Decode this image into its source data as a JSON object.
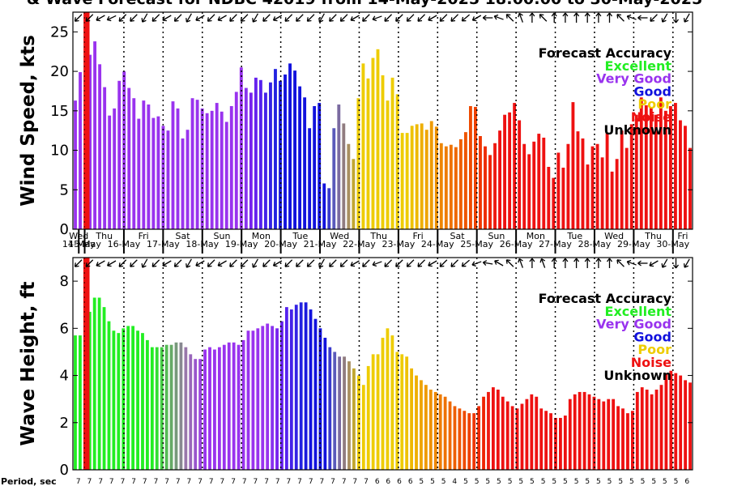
{
  "title": "& Wave Forecast for NDBC 42019 from 14-May-2025 18:00:00 to 30-May-2025",
  "legend": {
    "title": "Forecast Accuracy",
    "items": [
      {
        "label": "Excellent",
        "color": "#22ee22"
      },
      {
        "label": "Very Good",
        "color": "#9933ee"
      },
      {
        "label": "Good",
        "color": "#1111dd"
      },
      {
        "label": "Poor",
        "color": "#eecc00"
      },
      {
        "label": "Noise",
        "color": "#ee1111"
      },
      {
        "label": "Unknown",
        "color": "#000000"
      }
    ]
  },
  "period_label": "Period, sec",
  "chart_data": [
    {
      "type": "bar",
      "ylabel": "Wind Speed, kts",
      "ylim": [
        0,
        27.5
      ],
      "yticks": [
        0,
        5,
        10,
        15,
        20,
        25
      ],
      "xlim": [
        0,
        79
      ],
      "day_labels": [
        "Wed",
        "Thu",
        "Fri",
        "Sat",
        "Sun",
        "Mon",
        "Tue",
        "Wed",
        "Thu",
        "Fri",
        "Sat",
        "Sun",
        "Mon",
        "Tue",
        "Wed",
        "Thu",
        "Fri"
      ],
      "date_labels": [
        "14-May",
        "15-May",
        "16-May",
        "17-May",
        "18-May",
        "19-May",
        "20-May",
        "21-May",
        "22-May",
        "23-May",
        "24-May",
        "25-May",
        "26-May",
        "27-May",
        "28-May",
        "29-May",
        "30-May"
      ],
      "day_boundaries": [
        1.5,
        6.5,
        11.5,
        16.5,
        21.5,
        26.5,
        31.5,
        36.5,
        41.5,
        46.5,
        51.5,
        56.5,
        61.5,
        66.5,
        71.5,
        76.5
      ],
      "current_marker": 1.5,
      "grid": "vertical dotted lines",
      "legend_position": "top-right",
      "values": [
        16.3,
        19.9,
        27.5,
        22.1,
        23.8,
        20.9,
        18.0,
        14.4,
        15.3,
        18.8,
        20.0,
        17.9,
        16.6,
        14.0,
        16.3,
        15.8,
        14.1,
        14.3,
        13.1,
        12.5,
        16.2,
        15.3,
        11.5,
        12.6,
        16.6,
        16.4,
        15.3,
        14.7,
        15.0,
        16.0,
        14.9,
        13.6,
        15.6,
        17.4,
        20.5,
        17.9,
        17.3,
        19.2,
        18.9,
        17.3,
        18.6,
        20.3,
        18.8,
        19.6,
        21.0,
        20.1,
        18.1,
        16.7,
        12.8,
        15.6,
        16.0,
        5.8,
        5.2,
        12.8,
        15.8,
        13.4,
        10.8,
        8.9,
        16.6,
        21.0,
        19.1,
        21.7,
        22.8,
        19.5,
        16.3,
        19.2,
        17.1,
        12.2,
        12.2,
        13.1,
        13.3,
        13.4,
        12.6,
        13.7,
        13.0,
        10.9,
        10.5,
        10.7,
        10.4,
        11.4,
        12.3,
        15.6,
        15.5,
        11.8,
        10.5,
        9.4,
        10.9,
        12.5,
        14.5,
        14.8,
        16.0,
        13.8,
        10.8,
        9.5,
        11.1,
        12.1,
        11.6,
        7.9,
        6.5,
        9.7,
        7.8,
        10.8,
        16.1,
        12.4,
        11.5,
        8.2,
        10.5,
        10.8,
        9.1,
        12.2,
        7.3,
        8.9,
        12.5,
        10.3,
        13.3,
        14.5,
        16.7,
        15.7,
        15.4,
        14.5,
        16.7,
        15.0,
        15.6,
        16.0,
        13.8,
        13.1,
        10.3
      ],
      "colors": [
        "#9933ee",
        "#9933ee",
        "#ee1111",
        "#9933ee",
        "#9933ee",
        "#9933ee",
        "#9933ee",
        "#9933ee",
        "#9933ee",
        "#9933ee",
        "#9933ee",
        "#9933ee",
        "#9933ee",
        "#9933ee",
        "#9933ee",
        "#9933ee",
        "#9933ee",
        "#9933ee",
        "#9933ee",
        "#9933ee",
        "#9933ee",
        "#9933ee",
        "#9933ee",
        "#9933ee",
        "#9933ee",
        "#9933ee",
        "#9933ee",
        "#9933ee",
        "#9933ee",
        "#9933ee",
        "#9933ee",
        "#9933ee",
        "#9933ee",
        "#9933ee",
        "#9933ee",
        "#8833ee",
        "#7722ee",
        "#6622ee",
        "#5522ee",
        "#4422e8",
        "#3322e4",
        "#2222e0",
        "#1a1add",
        "#1111dd",
        "#1111dd",
        "#1111dd",
        "#1111dd",
        "#1111dd",
        "#1111dd",
        "#1111dd",
        "#1111dd",
        "#1111dd",
        "#3a3acc",
        "#5a5abb",
        "#7a6aa0",
        "#907c80",
        "#a88f60",
        "#c0a630",
        "#eecc00",
        "#eecc00",
        "#eecc00",
        "#eecc00",
        "#eecc00",
        "#eecc00",
        "#eecc00",
        "#eecc00",
        "#eecc00",
        "#eecc00",
        "#eecc00",
        "#eec200",
        "#eeb800",
        "#eeae00",
        "#eea400",
        "#ee9a00",
        "#ee9000",
        "#ee8600",
        "#ee7c00",
        "#ee7200",
        "#ee6800",
        "#ee5e00",
        "#ee5400",
        "#ee4a00",
        "#ee4000",
        "#ee3600",
        "#ee2c00",
        "#ee2200",
        "#ee1a11",
        "#ee1111",
        "#ee1111",
        "#ee1111",
        "#ee1111",
        "#ee1111",
        "#ee1111",
        "#ee1111",
        "#ee1111",
        "#ee1111",
        "#ee1111",
        "#ee1111",
        "#ee1111",
        "#ee1111",
        "#ee1111",
        "#ee1111",
        "#ee1111",
        "#ee1111",
        "#ee1111",
        "#ee1111",
        "#ee1111",
        "#ee1111",
        "#ee1111",
        "#ee1111",
        "#ee1111",
        "#ee1111",
        "#ee1111",
        "#ee1111",
        "#ee1111",
        "#ee1111",
        "#ee1111",
        "#ee1111",
        "#ee1111",
        "#ee1111",
        "#ee1111",
        "#ee1111",
        "#ee1111",
        "#ee1111",
        "#ee1111"
      ],
      "direction_arrows_deg": [
        135,
        135,
        150,
        155,
        135,
        135,
        120,
        135,
        150,
        135,
        120,
        150,
        135,
        150,
        135,
        135,
        120,
        135,
        150,
        135,
        135,
        135,
        120,
        135,
        135,
        150,
        135,
        160,
        135,
        135,
        135,
        135,
        150,
        135,
        135,
        140,
        150,
        180,
        200,
        225,
        250,
        270,
        225,
        270,
        270,
        270,
        270,
        270,
        270,
        225,
        200,
        180,
        135,
        120,
        90,
        120
      ]
    },
    {
      "type": "bar",
      "ylabel": "Wave Height, ft",
      "ylim": [
        0,
        9
      ],
      "yticks": [
        0,
        2,
        4,
        6,
        8
      ],
      "xlim": [
        0,
        79
      ],
      "day_labels": [],
      "date_labels": [],
      "day_boundaries": [
        1.5,
        6.5,
        11.5,
        16.5,
        21.5,
        26.5,
        31.5,
        36.5,
        41.5,
        46.5,
        51.5,
        56.5,
        61.5,
        66.5,
        71.5,
        76.5
      ],
      "current_marker": 1.5,
      "grid": "vertical dotted lines",
      "legend_position": "top-right",
      "values": [
        5.7,
        5.7,
        9.0,
        6.7,
        7.3,
        7.3,
        6.9,
        6.3,
        5.9,
        5.8,
        6.0,
        6.1,
        6.1,
        5.9,
        5.8,
        5.5,
        5.2,
        5.2,
        5.2,
        5.3,
        5.3,
        5.4,
        5.4,
        5.2,
        4.9,
        4.7,
        4.7,
        5.1,
        5.2,
        5.1,
        5.2,
        5.3,
        5.4,
        5.4,
        5.3,
        5.5,
        5.9,
        5.9,
        6.0,
        6.1,
        6.2,
        6.1,
        6.0,
        6.3,
        6.9,
        6.8,
        7.0,
        7.1,
        7.1,
        6.8,
        6.4,
        6.0,
        5.6,
        5.2,
        5.0,
        4.8,
        4.8,
        4.6,
        4.3,
        4.0,
        3.6,
        4.4,
        4.9,
        4.9,
        5.6,
        6.0,
        5.7,
        5.0,
        4.9,
        4.8,
        4.3,
        4.0,
        3.8,
        3.6,
        3.4,
        3.3,
        3.2,
        3.1,
        2.9,
        2.7,
        2.6,
        2.5,
        2.4,
        2.4,
        2.7,
        3.1,
        3.3,
        3.5,
        3.4,
        3.1,
        2.9,
        2.7,
        2.6,
        2.8,
        3.0,
        3.2,
        3.1,
        2.6,
        2.5,
        2.4,
        2.2,
        2.2,
        2.3,
        3.0,
        3.2,
        3.3,
        3.3,
        3.2,
        3.1,
        3.0,
        2.9,
        3.0,
        3.0,
        2.7,
        2.6,
        2.4,
        2.5,
        3.3,
        3.5,
        3.4,
        3.2,
        3.4,
        3.6,
        4.1,
        4.2,
        4.1,
        4.0,
        3.8,
        3.7
      ],
      "colors": [
        "#22ee22",
        "#22ee22",
        "#ee1111",
        "#22ee22",
        "#22ee22",
        "#22ee22",
        "#22ee22",
        "#22ee22",
        "#22ee22",
        "#22ee22",
        "#22ee22",
        "#22ee22",
        "#22ee22",
        "#22ee22",
        "#22ee22",
        "#22ee22",
        "#22ee22",
        "#33dd33",
        "#44cc44",
        "#55bb55",
        "#66aa66",
        "#77997a",
        "#888890",
        "#9977aa",
        "#9966bb",
        "#9955cc",
        "#9944dd",
        "#9933ee",
        "#9933ee",
        "#9933ee",
        "#9933ee",
        "#9933ee",
        "#9933ee",
        "#9933ee",
        "#9933ee",
        "#9933ee",
        "#9933ee",
        "#9933ee",
        "#9933ee",
        "#9933ee",
        "#9933ee",
        "#8833ee",
        "#7722ee",
        "#6622ee",
        "#5522ee",
        "#4422e8",
        "#3322e4",
        "#2222e0",
        "#1a1add",
        "#1111dd",
        "#1111dd",
        "#1111dd",
        "#1111dd",
        "#3a3acc",
        "#5a5abb",
        "#7a6aa0",
        "#907c80",
        "#a88f60",
        "#c0a630",
        "#eecc00",
        "#eecc00",
        "#eecc00",
        "#eecc00",
        "#eecc00",
        "#eecc00",
        "#eecc00",
        "#eecc00",
        "#eecc00",
        "#eecc00",
        "#eec200",
        "#eeb800",
        "#eeae00",
        "#eea400",
        "#ee9a00",
        "#ee9000",
        "#ee8600",
        "#ee7c00",
        "#ee7200",
        "#ee6800",
        "#ee5e00",
        "#ee5400",
        "#ee4a00",
        "#ee4000",
        "#ee3600",
        "#ee2c00",
        "#ee2200",
        "#ee1a11",
        "#ee1111",
        "#ee1111",
        "#ee1111",
        "#ee1111",
        "#ee1111",
        "#ee1111",
        "#ee1111",
        "#ee1111",
        "#ee1111",
        "#ee1111",
        "#ee1111",
        "#ee1111",
        "#ee1111",
        "#ee1111",
        "#ee1111",
        "#ee1111",
        "#ee1111",
        "#ee1111",
        "#ee1111",
        "#ee1111",
        "#ee1111",
        "#ee1111",
        "#ee1111",
        "#ee1111",
        "#ee1111",
        "#ee1111",
        "#ee1111",
        "#ee1111",
        "#ee1111",
        "#ee1111",
        "#ee1111",
        "#ee1111",
        "#ee1111",
        "#ee1111",
        "#ee1111",
        "#ee1111",
        "#ee1111",
        "#ee1111",
        "#ee1111",
        "#ee1111"
      ],
      "direction_arrows_deg": [
        135,
        135,
        150,
        150,
        135,
        135,
        120,
        135,
        150,
        135,
        120,
        150,
        135,
        150,
        135,
        135,
        120,
        135,
        150,
        135,
        135,
        135,
        120,
        135,
        135,
        150,
        135,
        160,
        135,
        135,
        135,
        135,
        150,
        135,
        135,
        140,
        160,
        190,
        210,
        225,
        250,
        270,
        250,
        270,
        270,
        270,
        270,
        270,
        270,
        225,
        200,
        180,
        150,
        120,
        90,
        120
      ],
      "period_ticks": [
        "7",
        "7",
        "7",
        "7",
        "7",
        "7",
        "7",
        "7",
        "7",
        "7",
        "7",
        "7",
        "7",
        "7",
        "7",
        "7",
        "7",
        "7",
        "7",
        "7",
        "7",
        "7",
        "7",
        "7",
        "7",
        "7",
        "7",
        "6",
        "6",
        "6",
        "6",
        "5",
        "5",
        "5",
        "4",
        "5",
        "5",
        "5",
        "5",
        "5",
        "5",
        "5",
        "5",
        "5",
        "5",
        "5",
        "5",
        "5",
        "5",
        "5",
        "5",
        "5",
        "5",
        "5",
        "5",
        "6"
      ]
    }
  ]
}
